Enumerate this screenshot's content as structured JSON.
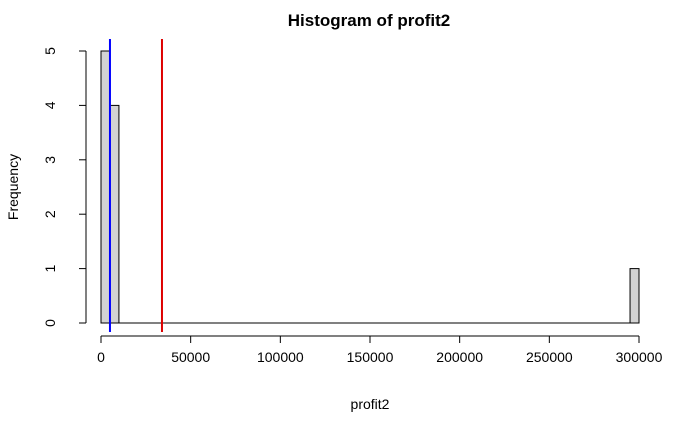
{
  "chart_data": {
    "type": "bar",
    "title": "Histogram of profit2",
    "xlabel": "profit2",
    "ylabel": "Frequency",
    "xlim": [
      0,
      300000
    ],
    "ylim": [
      0,
      5
    ],
    "bin_width": 5000,
    "bins": [
      {
        "x0": 0,
        "x1": 5000,
        "count": 5
      },
      {
        "x0": 5000,
        "x1": 10000,
        "count": 4
      },
      {
        "x0": 295000,
        "x1": 300000,
        "count": 1
      }
    ],
    "x_ticks": [
      0,
      50000,
      100000,
      150000,
      200000,
      250000,
      300000
    ],
    "x_tick_labels": [
      "0",
      "50000",
      "100000",
      "150000",
      "200000",
      "250000",
      "300000"
    ],
    "y_ticks": [
      0,
      1,
      2,
      3,
      4,
      5
    ],
    "y_tick_labels": [
      "0",
      "1",
      "2",
      "3",
      "4",
      "5"
    ],
    "vlines": [
      {
        "x": 5000,
        "color": "#0000ff"
      },
      {
        "x": 34000,
        "color": "#dd0000"
      }
    ],
    "bar_fill": "#d3d3d3",
    "bar_stroke": "#000000",
    "grid": false,
    "legend": "none"
  }
}
